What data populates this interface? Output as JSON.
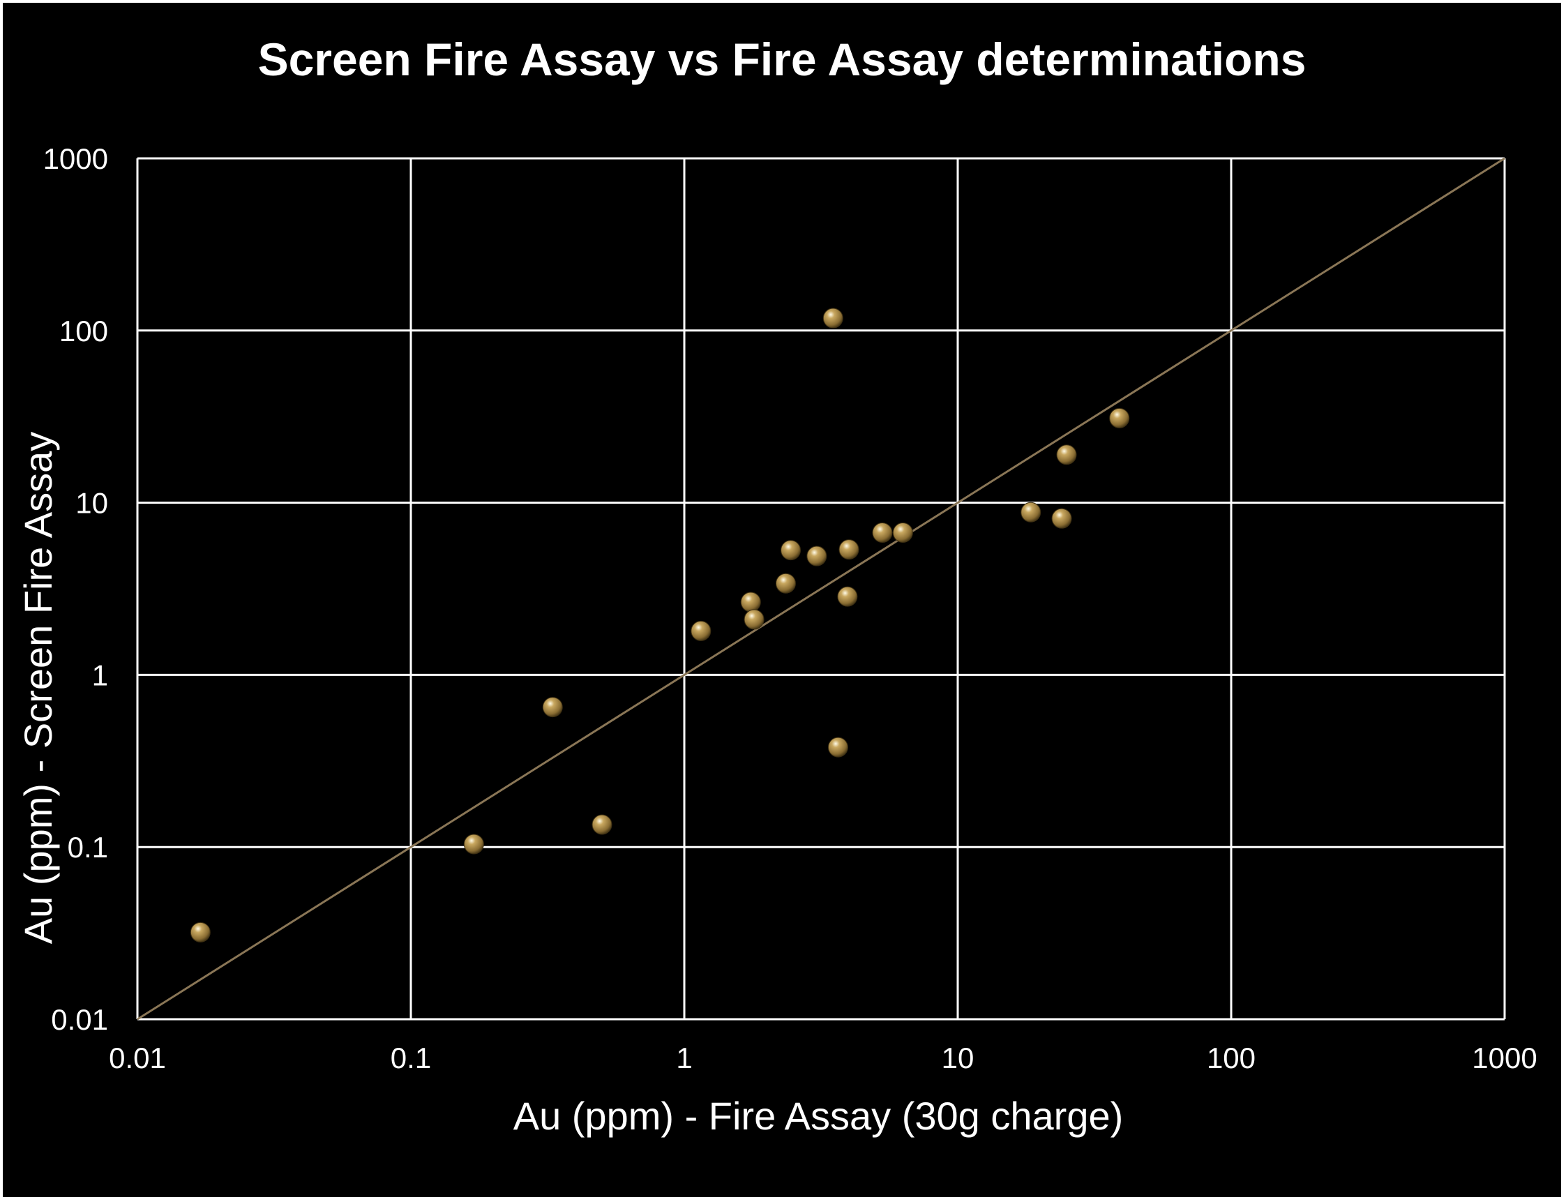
{
  "chart_data": {
    "type": "scatter",
    "title": "Screen Fire Assay vs Fire Assay determinations",
    "xlabel": "Au (ppm) - Fire Assay (30g charge)",
    "ylabel": "Au (ppm) - Screen Fire Assay",
    "xscale": "log",
    "yscale": "log",
    "xlim": [
      0.01,
      1000
    ],
    "ylim": [
      0.01,
      1000
    ],
    "x_ticks": [
      "0.01",
      "0.1",
      "1",
      "10",
      "100",
      "1000"
    ],
    "y_ticks": [
      "0.01",
      "0.1",
      "1",
      "10",
      "100",
      "1000"
    ],
    "grid": true,
    "reference_line": "y = x",
    "marker_color": "#c9a860",
    "reference_line_color": "#8a7656",
    "background_color": "#000000",
    "points": [
      {
        "x": 0.017,
        "y": 0.032
      },
      {
        "x": 0.17,
        "y": 0.104
      },
      {
        "x": 0.33,
        "y": 0.65
      },
      {
        "x": 0.5,
        "y": 0.135
      },
      {
        "x": 1.15,
        "y": 1.8
      },
      {
        "x": 1.75,
        "y": 2.65
      },
      {
        "x": 1.8,
        "y": 2.1
      },
      {
        "x": 2.35,
        "y": 3.4
      },
      {
        "x": 2.45,
        "y": 5.3
      },
      {
        "x": 3.05,
        "y": 4.9
      },
      {
        "x": 3.5,
        "y": 118
      },
      {
        "x": 3.65,
        "y": 0.38
      },
      {
        "x": 3.95,
        "y": 2.85
      },
      {
        "x": 4.0,
        "y": 5.35
      },
      {
        "x": 5.3,
        "y": 6.7
      },
      {
        "x": 6.3,
        "y": 6.7
      },
      {
        "x": 18.5,
        "y": 8.8
      },
      {
        "x": 24,
        "y": 8.1
      },
      {
        "x": 25,
        "y": 19
      },
      {
        "x": 39,
        "y": 31
      }
    ]
  }
}
